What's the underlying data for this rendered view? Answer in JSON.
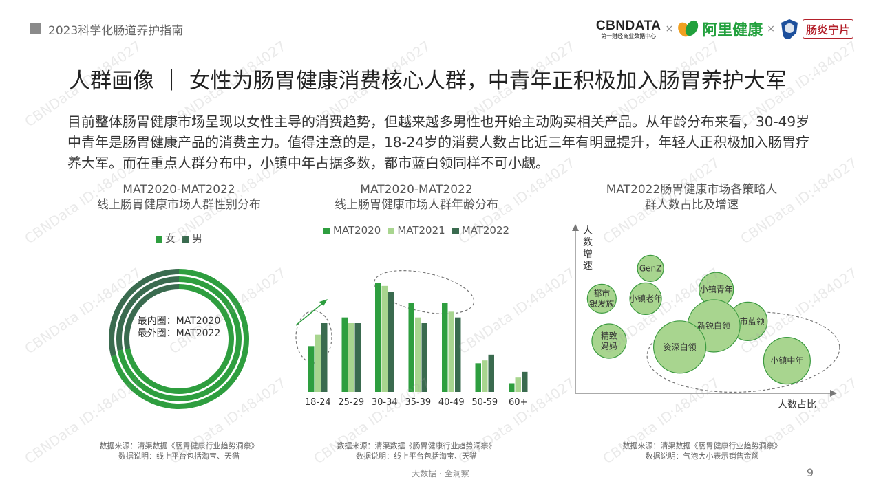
{
  "header": {
    "report_title": "2023科学化肠道养护指南",
    "logo_cbn_main": "CBNDATA",
    "logo_cbn_sub": "第一财经商业数据中心",
    "times": "×",
    "logo_ali": "阿里健康",
    "logo_brand": "肠炎宁片"
  },
  "headline": "人群画像 ｜ 女性为肠胃健康消费核心人群，中青年正积极加入肠胃养护大军",
  "body_text": "目前整体肠胃健康市场呈现以女性主导的消费趋势，但越来越多男性也开始主动购买相关产品。从年龄分布来看，30-49岁中青年是肠胃健康产品的消费主力。值得注意的是，18-24岁的消费人数占比近三年有明显提升，年轻人正积极加入肠胃疗养大军。而在重点人群分布中，小镇中年占据多数，都市蓝白领同样不可小觑。",
  "colors": {
    "dark_green": "#3a6b4f",
    "mid_green": "#2e9e3f",
    "light_green": "#a8d58f",
    "bubble_fill": "#a8d58f",
    "bubble_stroke": "#3b9a3f"
  },
  "chart_data": [
    {
      "type": "pie",
      "title_line1": "MAT2020-MAT2022",
      "title_line2": "线上肠胃健康市场人群性别分布",
      "legend": [
        "女",
        "男"
      ],
      "rings": [
        "MAT2020",
        "MAT2021",
        "MAT2022"
      ],
      "series": [
        {
          "name": "MAT2020",
          "values": [
            72,
            28
          ]
        },
        {
          "name": "MAT2021",
          "values": [
            72,
            28
          ]
        },
        {
          "name": "MAT2022",
          "values": [
            71,
            29
          ]
        }
      ],
      "center_label_1": "最内圈：MAT2020",
      "center_label_2": "最外圈：MAT2022",
      "source_1": "数据来源：清渠数据《肠胃健康行业趋势洞察》",
      "source_2": "数据说明：线上平台包括淘宝、天猫"
    },
    {
      "type": "bar",
      "title_line1": "MAT2020-MAT2022",
      "title_line2": "线上肠胃健康市场人群年龄分布",
      "categories": [
        "18-24",
        "25-29",
        "30-34",
        "35-39",
        "40-49",
        "50-59",
        "60+"
      ],
      "series": [
        {
          "name": "MAT2020",
          "values": [
            8.0,
            13.0,
            19.0,
            15.5,
            15.5,
            5.0,
            1.5
          ]
        },
        {
          "name": "MAT2021",
          "values": [
            10.0,
            12.0,
            18.5,
            13.0,
            14.0,
            5.5,
            2.5
          ]
        },
        {
          "name": "MAT2022",
          "values": [
            12.0,
            12.0,
            17.5,
            12.0,
            13.0,
            6.5,
            3.5
          ]
        }
      ],
      "ylim": [
        0,
        21
      ],
      "source_1": "数据来源：清渠数据《肠胃健康行业趋势洞察》",
      "source_2": "数据说明：线上平台包括淘宝、天猫"
    },
    {
      "type": "scatter",
      "title_line1": "MAT2022肠胃健康市场各策略人",
      "title_line2": "群人数占比及增速",
      "ylabel": "人数增速",
      "xlabel": "人数占比",
      "points": [
        {
          "name": "GenZ",
          "x": 28,
          "y": 78,
          "size": 19
        },
        {
          "name": "都市银发族",
          "x": 8,
          "y": 58,
          "size": 21
        },
        {
          "name": "小镇老年",
          "x": 26,
          "y": 58,
          "size": 23
        },
        {
          "name": "小镇青年",
          "x": 55,
          "y": 64,
          "size": 25
        },
        {
          "name": "精致妈妈",
          "x": 11,
          "y": 30,
          "size": 25
        },
        {
          "name": "都市蓝领",
          "x": 68,
          "y": 43,
          "size": 28
        },
        {
          "name": "新锐白领",
          "x": 54,
          "y": 40,
          "size": 38
        },
        {
          "name": "资深白领",
          "x": 40,
          "y": 26,
          "size": 38
        },
        {
          "name": "小镇中年",
          "x": 84,
          "y": 17,
          "size": 34
        }
      ],
      "xlim": [
        0,
        100
      ],
      "ylim": [
        0,
        100
      ],
      "source_1": "数据来源：清渠数据《肠胃健康行业趋势洞察》",
      "source_2": "数据说明：气泡大小表示销售金额"
    }
  ],
  "footer": {
    "text": "大数据 · 全洞察",
    "page": "9"
  },
  "watermark": "CBNData ID:484027"
}
